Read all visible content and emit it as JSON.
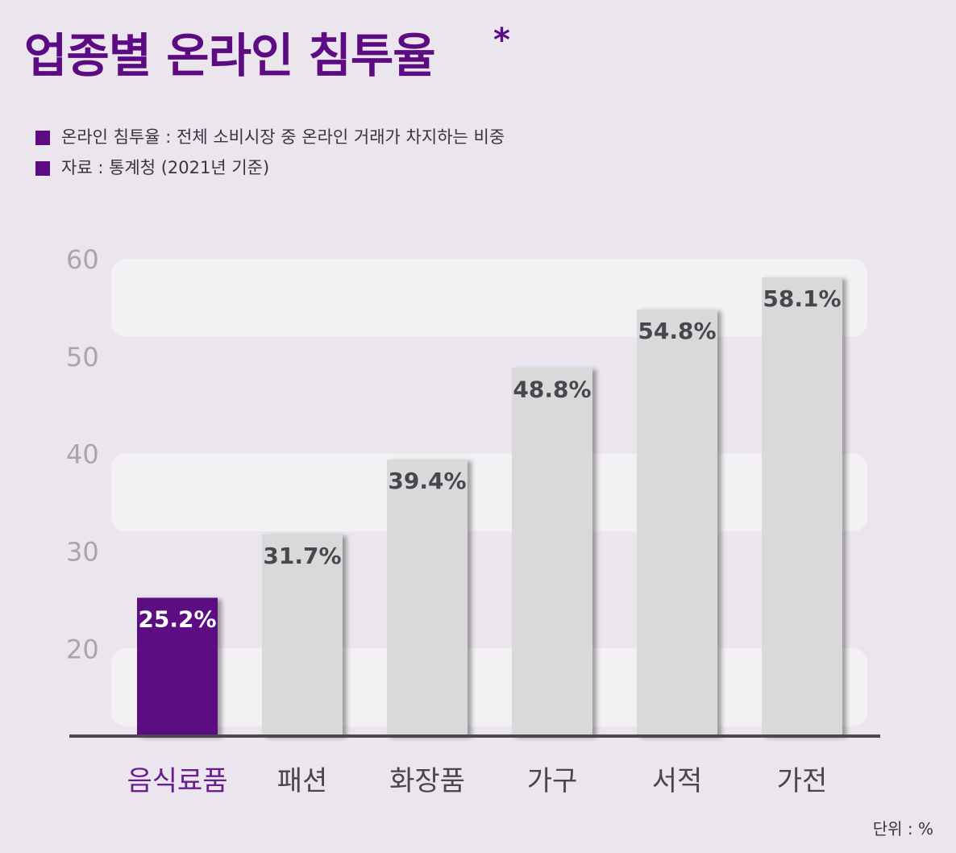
{
  "title": "업종별 온라인 침투율",
  "title_mark": "*",
  "notes": [
    "온라인 침투율 : 전체 소비시장 중 온라인 거래가 차지하는 비중",
    "자료 : 통계청 (2021년 기준)"
  ],
  "unit_label": "단위 : %",
  "colors": {
    "accent": "#5d0b82",
    "bar": "#d9d9d9",
    "band": "#f4f1f5",
    "axis": "#4a4a4a"
  },
  "chart_data": {
    "type": "bar",
    "categories": [
      "음식료품",
      "패션",
      "화장품",
      "가구",
      "서적",
      "가전"
    ],
    "values": [
      25.2,
      31.7,
      39.4,
      48.8,
      54.8,
      58.1
    ],
    "value_labels": [
      "25.2%",
      "31.7%",
      "39.4%",
      "48.8%",
      "54.8%",
      "58.1%"
    ],
    "highlight_index": 0,
    "yticks": [
      20,
      30,
      40,
      50,
      60
    ],
    "ylim": [
      11,
      60
    ],
    "bands": [
      [
        12,
        20
      ],
      [
        32,
        40
      ],
      [
        52,
        60
      ]
    ],
    "grid": false,
    "legend": "none"
  }
}
